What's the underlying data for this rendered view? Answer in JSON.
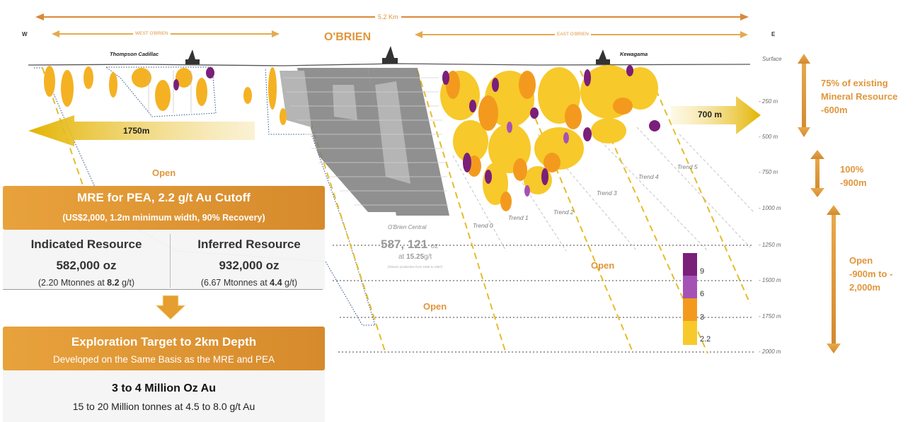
{
  "header": {
    "west": "W",
    "east": "E",
    "total_length": "5.2 Km",
    "west_obrien": "WEST O'BRIEN",
    "east_obrien": "EAST O'BRIEN",
    "obrien": "O'BRIEN",
    "thompson": "Thompson Cadillac",
    "kewagama": "Kewagama"
  },
  "depth_axis": {
    "labels": [
      "Surface",
      "- 250 m",
      "- 500 m",
      "- 750 m",
      "- 1000 m",
      "- 1250 m",
      "- 1500 m",
      "- 1750 m",
      "- 2000 m"
    ]
  },
  "right_annotations": {
    "existing": "75% of existing\nMineral Resource\n-600m",
    "hundred": "100%\n-900m",
    "open": "Open\n-900m to -\n2,000m"
  },
  "arrows": {
    "west_distance": "1750m",
    "east_distance": "700 m"
  },
  "open_labels": [
    "Open",
    "Open",
    "Open"
  ],
  "obrien_central": {
    "name": "O'Brien Central",
    "ounces": "587, 121",
    "ounces_unit": "oz",
    "grade_prefix": "at",
    "grade": "15.25",
    "grade_unit": "g/t",
    "note": "(historic production from 1926 to 1957)"
  },
  "trends": [
    "Trend 0",
    "Trend 1",
    "Trend 2",
    "Trend 3",
    "Trend 4",
    "Trend 5"
  ],
  "legend": {
    "entries": [
      {
        "value": "9",
        "color": "#7a1f7a"
      },
      {
        "value": "6",
        "color": "#a552b5"
      },
      {
        "value": "3",
        "color": "#f39a1e"
      },
      {
        "value": "2.2",
        "color": "#f7c92a"
      }
    ]
  },
  "mre_panel": {
    "title": "MRE for PEA, 2.2 g/t Au Cutoff",
    "subtitle": "(US$2,000, 1.2m minimum width, 90% Recovery)",
    "indicated_title": "Indicated Resource",
    "indicated_oz": "582,000 oz",
    "indicated_detail_pre": "(2.20 Mtonnes at ",
    "indicated_grade": "8.2",
    "indicated_detail_post": " g/t)",
    "inferred_title": "Inferred Resource",
    "inferred_oz": "932,000 oz",
    "inferred_detail_pre": "(6.67 Mtonnes at ",
    "inferred_grade": "4.4",
    "inferred_detail_post": " g/t)"
  },
  "exploration_panel": {
    "title": "Exploration Target to 2km Depth",
    "subtitle": "Developed on the Same Basis as the MRE and PEA",
    "target": "3 to 4 Million Oz Au",
    "detail": "15 to 20 Million tonnes at 4.5 to 8.0 g/t Au"
  },
  "colors": {
    "accent": "#e0963c",
    "gold": "#e8b820",
    "purple": "#7a1f7a"
  }
}
